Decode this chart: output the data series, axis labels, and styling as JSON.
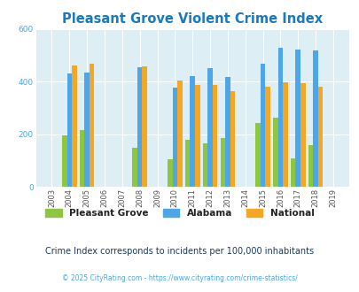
{
  "title": "Pleasant Grove Violent Crime Index",
  "years": [
    2003,
    2004,
    2005,
    2006,
    2007,
    2008,
    2009,
    2010,
    2011,
    2012,
    2013,
    2014,
    2015,
    2016,
    2017,
    2018,
    2019
  ],
  "pleasant_grove": [
    null,
    197,
    217,
    null,
    null,
    148,
    null,
    105,
    178,
    165,
    185,
    null,
    243,
    263,
    110,
    158,
    null
  ],
  "alabama": [
    null,
    430,
    435,
    null,
    null,
    455,
    null,
    378,
    420,
    453,
    417,
    null,
    470,
    530,
    523,
    520,
    null
  ],
  "national": [
    null,
    463,
    469,
    null,
    null,
    458,
    null,
    405,
    388,
    388,
    363,
    null,
    382,
    398,
    395,
    381,
    null
  ],
  "pg_color": "#8dc63f",
  "al_color": "#4da6e8",
  "nat_color": "#f5a623",
  "bg_color": "#deeef5",
  "title_color": "#1a7abf",
  "ylabel_max": 600,
  "yticks": [
    0,
    200,
    400,
    600
  ],
  "subtitle": "Crime Index corresponds to incidents per 100,000 inhabitants",
  "footer": "© 2025 CityRating.com - https://www.cityrating.com/crime-statistics/",
  "bar_width": 0.28,
  "subtitle_color": "#1a3a5c",
  "footer_color": "#4da6e8"
}
